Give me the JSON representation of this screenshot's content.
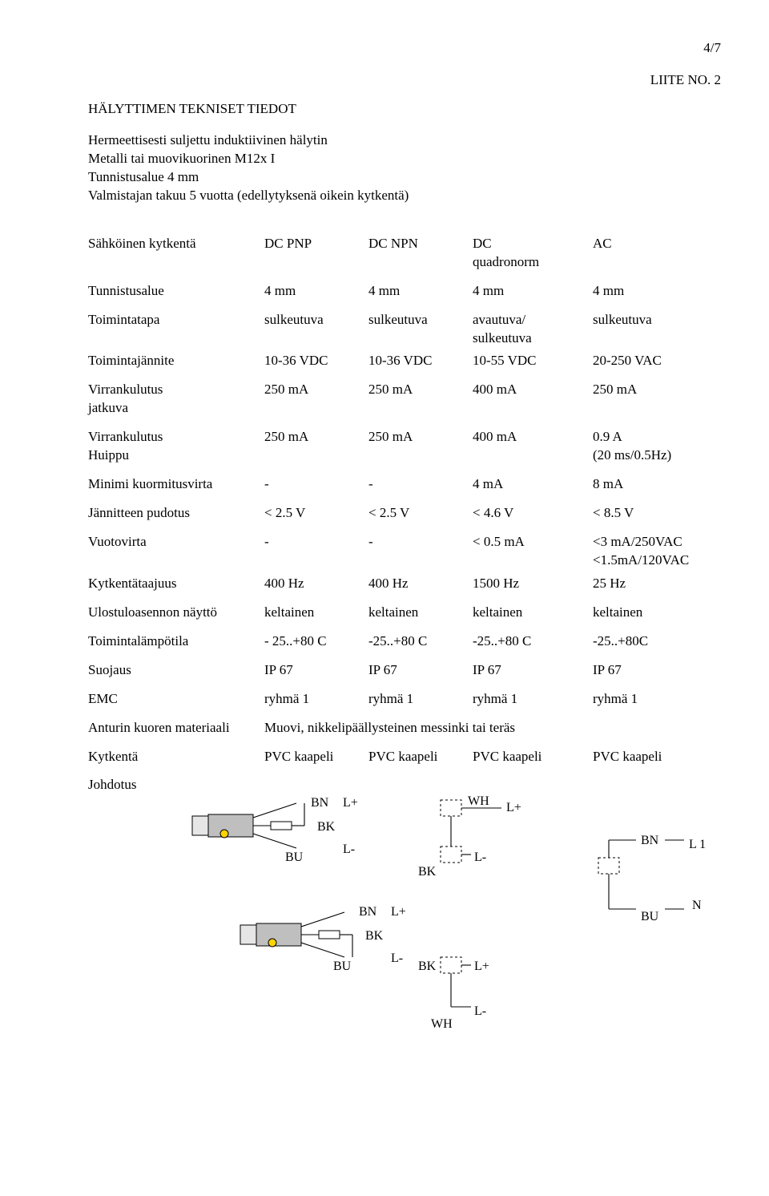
{
  "page_number": "4/7",
  "appendix": "LIITE NO. 2",
  "title": "HÄLYTTIMEN TEKNISET TIEDOT",
  "intro": [
    "Hermeettisesti suljettu induktiivinen hälytin",
    "Metalli tai muovikuorinen M12x I",
    "Tunnistusalue 4 mm",
    "Valmistajan takuu 5 vuotta (edellytyksenä oikein kytkentä)"
  ],
  "spec": {
    "rows": [
      {
        "label": "Sähköinen kytkentä",
        "cells": [
          "DC PNP",
          "DC NPN",
          "DC\nquadronorm",
          "AC"
        ]
      },
      {
        "label": "Tunnistusalue",
        "cells": [
          "4 mm",
          "4 mm",
          "4 mm",
          "4 mm"
        ]
      },
      {
        "label": "Toimintatapa",
        "cells": [
          "sulkeutuva",
          "sulkeutuva",
          "avautuva/\nsulkeutuva",
          "sulkeutuva"
        ]
      },
      {
        "label": "Toimintajännite",
        "cells": [
          "10-36 VDC",
          "10-36 VDC",
          "10-55 VDC",
          "20-250 VAC"
        ]
      },
      {
        "label": "Virrankulutus\njatkuva",
        "cells": [
          "250 mA",
          "250 mA",
          "400 mA",
          "250 mA"
        ]
      },
      {
        "label": "Virrankulutus\nHuippu",
        "cells": [
          "250 mA",
          "250 mA",
          "400 mA",
          "0.9 A\n(20 ms/0.5Hz)"
        ]
      },
      {
        "label": "Minimi kuormitusvirta",
        "cells": [
          "-",
          "-",
          "4 mA",
          "8 mA"
        ]
      },
      {
        "label": "Jännitteen pudotus",
        "cells": [
          "< 2.5 V",
          "< 2.5 V",
          "< 4.6 V",
          "< 8.5 V"
        ]
      },
      {
        "label": "Vuotovirta",
        "cells": [
          "-",
          "-",
          "< 0.5 mA",
          "<3 mA/250VAC\n<1.5mA/120VAC"
        ]
      },
      {
        "label": "Kytkentätaajuus",
        "cells": [
          "400 Hz",
          "400 Hz",
          "1500 Hz",
          "25 Hz"
        ]
      },
      {
        "label": "Ulostuloasennon näyttö",
        "cells": [
          "keltainen",
          "keltainen",
          "keltainen",
          "keltainen"
        ]
      },
      {
        "label": "Toimintalämpötila",
        "cells": [
          "- 25..+80 C",
          "-25..+80 C",
          "-25..+80 C",
          "-25..+80C"
        ]
      },
      {
        "label": "Suojaus",
        "cells": [
          "IP 67",
          "IP 67",
          "IP 67",
          "IP 67"
        ]
      },
      {
        "label": "EMC",
        "cells": [
          "ryhmä 1",
          "ryhmä 1",
          "ryhmä 1",
          "ryhmä 1"
        ]
      },
      {
        "label": "Anturin kuoren materiaali",
        "cells": [
          "Muovi, nikkelipäällysteinen messinki tai teräs",
          "",
          "",
          ""
        ],
        "span": true
      },
      {
        "label": "Kytkentä",
        "cells": [
          "PVC kaapeli",
          "PVC kaapeli",
          "PVC kaapeli",
          "PVC kaapeli"
        ]
      },
      {
        "label": "Johdotus",
        "cells": [
          "",
          "",
          "",
          ""
        ]
      }
    ]
  },
  "diagrams": {
    "wire_labels": {
      "BN": "BN",
      "BK": "BK",
      "BU": "BU",
      "WH": "WH"
    },
    "terminal_labels": {
      "Lp": "L+",
      "Lm": "L-",
      "L1": "L 1",
      "N": "N"
    },
    "style": {
      "sensor_fill": "#bfbfbf",
      "sensor_tip": "#e6e6e6",
      "led_fill": "#ffd400",
      "led_stroke": "#000000",
      "wire_color": "#000000",
      "box_stroke": "#000000",
      "box_dash": "3",
      "wire_width": 1.1
    }
  }
}
